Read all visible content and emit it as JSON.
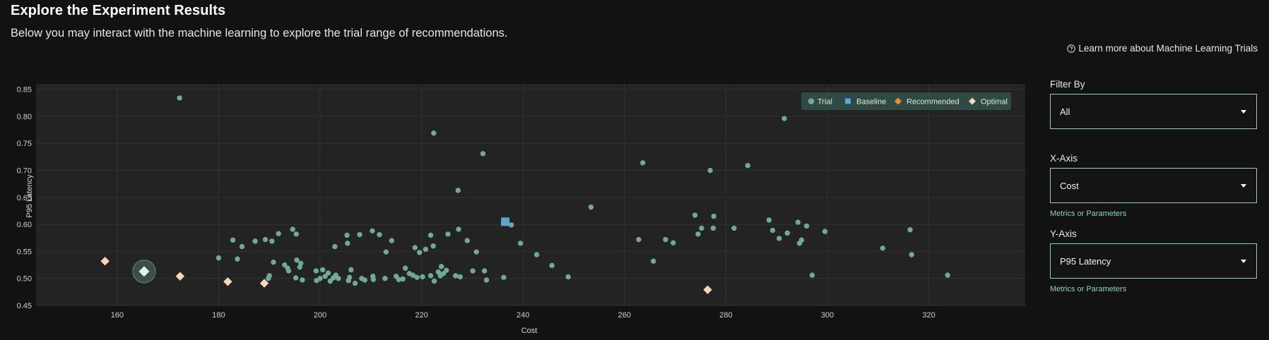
{
  "header": {
    "title": "Explore the Experiment Results",
    "subtitle": "Below you may interact with the machine learning to explore the trial range of recommendations.",
    "learn_more": "Learn more about Machine Learning Trials"
  },
  "filters": {
    "filter_by": {
      "label": "Filter By",
      "value": "All"
    },
    "x_axis": {
      "label": "X-Axis",
      "value": "Cost",
      "hint": "Metrics or Parameters"
    },
    "y_axis": {
      "label": "Y-Axis",
      "value": "P95 Latency",
      "hint": "Metrics or Parameters"
    }
  },
  "colors": {
    "trial": "#6fa99a",
    "baseline": "#5aa5d6",
    "recommended": "#f08c2c",
    "optimal": "#fbd6b2",
    "selected": "#d9f7ee",
    "accent": "#8fd2c0"
  },
  "chart_data": {
    "type": "scatter",
    "xlabel": "Cost",
    "ylabel": "P95 Latency",
    "xlim": [
      144,
      339
    ],
    "ylim": [
      0.45,
      0.86
    ],
    "xticks": [
      "160",
      "180",
      "200",
      "220",
      "240",
      "260",
      "280",
      "300",
      "320"
    ],
    "yticks": [
      "0.45",
      "0.50",
      "0.55",
      "0.60",
      "0.65",
      "0.70",
      "0.75",
      "0.80",
      "0.85"
    ],
    "grid": true,
    "legend": {
      "placement": "top-right",
      "entries": [
        "Trial",
        "Baseline",
        "Recommended",
        "Optimal"
      ]
    },
    "series": [
      {
        "name": "Trial",
        "marker": "circle",
        "points": [
          [
            172.3,
            0.834
          ],
          [
            180.0,
            0.538
          ],
          [
            182.8,
            0.571
          ],
          [
            183.7,
            0.536
          ],
          [
            184.6,
            0.559
          ],
          [
            187.2,
            0.569
          ],
          [
            189.2,
            0.572
          ],
          [
            190.0,
            0.505
          ],
          [
            189.8,
            0.5
          ],
          [
            190.8,
            0.53
          ],
          [
            190.5,
            0.569
          ],
          [
            191.8,
            0.583
          ],
          [
            193.0,
            0.525
          ],
          [
            193.6,
            0.519
          ],
          [
            193.8,
            0.514
          ],
          [
            194.6,
            0.591
          ],
          [
            195.3,
            0.582
          ],
          [
            195.4,
            0.534
          ],
          [
            195.2,
            0.501
          ],
          [
            196.0,
            0.521
          ],
          [
            196.2,
            0.528
          ],
          [
            196.5,
            0.497
          ],
          [
            199.2,
            0.514
          ],
          [
            199.3,
            0.496
          ],
          [
            200.0,
            0.5
          ],
          [
            200.5,
            0.516
          ],
          [
            201.0,
            0.504
          ],
          [
            201.6,
            0.51
          ],
          [
            202.0,
            0.495
          ],
          [
            202.6,
            0.501
          ],
          [
            202.9,
            0.559
          ],
          [
            203.1,
            0.506
          ],
          [
            203.6,
            0.5
          ],
          [
            205.3,
            0.58
          ],
          [
            205.4,
            0.565
          ],
          [
            205.6,
            0.496
          ],
          [
            205.8,
            0.502
          ],
          [
            206.1,
            0.516
          ],
          [
            206.9,
            0.491
          ],
          [
            207.8,
            0.581
          ],
          [
            208.2,
            0.5
          ],
          [
            208.8,
            0.497
          ],
          [
            210.3,
            0.588
          ],
          [
            210.4,
            0.504
          ],
          [
            210.5,
            0.498
          ],
          [
            211.7,
            0.581
          ],
          [
            212.8,
            0.5
          ],
          [
            213.0,
            0.549
          ],
          [
            214.1,
            0.57
          ],
          [
            215.0,
            0.504
          ],
          [
            215.5,
            0.498
          ],
          [
            216.3,
            0.499
          ],
          [
            216.8,
            0.519
          ],
          [
            217.6,
            0.509
          ],
          [
            218.3,
            0.506
          ],
          [
            218.7,
            0.557
          ],
          [
            219.1,
            0.502
          ],
          [
            219.6,
            0.548
          ],
          [
            220.2,
            0.503
          ],
          [
            220.8,
            0.554
          ],
          [
            221.8,
            0.505
          ],
          [
            221.8,
            0.58
          ],
          [
            222.3,
            0.56
          ],
          [
            222.4,
            0.769
          ],
          [
            222.5,
            0.495
          ],
          [
            223.3,
            0.512
          ],
          [
            223.7,
            0.505
          ],
          [
            223.9,
            0.522
          ],
          [
            224.3,
            0.509
          ],
          [
            224.9,
            0.515
          ],
          [
            225.2,
            0.582
          ],
          [
            226.7,
            0.505
          ],
          [
            227.2,
            0.663
          ],
          [
            227.3,
            0.591
          ],
          [
            227.6,
            0.503
          ],
          [
            229.0,
            0.57
          ],
          [
            230.1,
            0.514
          ],
          [
            230.8,
            0.549
          ],
          [
            232.1,
            0.731
          ],
          [
            232.4,
            0.514
          ],
          [
            232.8,
            0.497
          ],
          [
            236.2,
            0.502
          ],
          [
            237.7,
            0.599
          ],
          [
            239.5,
            0.565
          ],
          [
            242.7,
            0.544
          ],
          [
            245.7,
            0.524
          ],
          [
            248.9,
            0.503
          ],
          [
            253.4,
            0.632
          ],
          [
            262.8,
            0.572
          ],
          [
            263.6,
            0.714
          ],
          [
            265.7,
            0.532
          ],
          [
            268.1,
            0.572
          ],
          [
            269.6,
            0.566
          ],
          [
            273.9,
            0.617
          ],
          [
            274.5,
            0.582
          ],
          [
            275.2,
            0.593
          ],
          [
            276.9,
            0.7
          ],
          [
            277.5,
            0.593
          ],
          [
            277.6,
            0.615
          ],
          [
            281.6,
            0.593
          ],
          [
            284.3,
            0.709
          ],
          [
            288.5,
            0.608
          ],
          [
            289.2,
            0.589
          ],
          [
            290.5,
            0.574
          ],
          [
            291.5,
            0.796
          ],
          [
            292.1,
            0.584
          ],
          [
            294.2,
            0.604
          ],
          [
            294.5,
            0.565
          ],
          [
            294.9,
            0.571
          ],
          [
            295.9,
            0.597
          ],
          [
            297.0,
            0.506
          ],
          [
            299.5,
            0.587
          ],
          [
            310.9,
            0.556
          ],
          [
            316.3,
            0.59
          ],
          [
            316.6,
            0.544
          ],
          [
            323.7,
            0.506
          ]
        ]
      },
      {
        "name": "Baseline",
        "marker": "square",
        "points": [
          [
            236.5,
            0.605
          ]
        ]
      },
      {
        "name": "Recommended",
        "marker": "diamond",
        "points": []
      },
      {
        "name": "Optimal",
        "marker": "diamond",
        "points": [
          [
            157.6,
            0.532
          ],
          [
            172.4,
            0.504
          ],
          [
            181.8,
            0.494
          ],
          [
            189.0,
            0.491
          ],
          [
            276.4,
            0.479
          ]
        ]
      }
    ],
    "selected_point": [
      165.3,
      0.513
    ]
  }
}
